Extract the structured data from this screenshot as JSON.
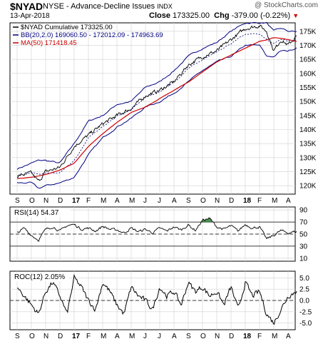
{
  "header": {
    "symbol": "$NYAD",
    "description": "NYSE - Advance-Decline Issues",
    "exchange": "INDX",
    "date": "13-Apr-2018",
    "close_label": "Close",
    "close_value": "173325.00",
    "chg_label": "Chg",
    "chg_value": "-379.00 (-0.22%)",
    "watermark": "@ StockCharts.com"
  },
  "colors": {
    "price": "#000000",
    "bb": "#000080",
    "ma": "#cc0000",
    "rsi_fill": "#2e7d32",
    "grid": "#d0d0d0"
  },
  "chart_data": [
    {
      "type": "line",
      "panel": "price",
      "legend": [
        {
          "name": "$NYAD Cumulative 173325.00",
          "color": "#000000"
        },
        {
          "name": "BB(20,2.0) 169060.50 - 172012.09 - 174963.69",
          "color": "#000080"
        },
        {
          "name": "MA(50) 171418.45",
          "color": "#cc0000"
        }
      ],
      "y_ticks": [
        "175K",
        "170K",
        "165K",
        "160K",
        "155K",
        "150K",
        "145K",
        "140K",
        "135K",
        "130K",
        "125K",
        "120K"
      ],
      "y_tick_values": [
        175,
        170,
        165,
        160,
        155,
        150,
        145,
        140,
        135,
        130,
        125,
        120
      ],
      "ylim": [
        117,
        178
      ],
      "y_unit": "K",
      "x_labels": [
        "S",
        "O",
        "N",
        "D",
        "17",
        "F",
        "M",
        "A",
        "M",
        "J",
        "J",
        "A",
        "S",
        "O",
        "N",
        "D",
        "18",
        "F",
        "M",
        "A"
      ],
      "x_bold": [
        "17",
        "18"
      ],
      "series_anchors": {
        "x": [
          0,
          1,
          1.5,
          2,
          3,
          4,
          5,
          6,
          7,
          8,
          9,
          10,
          11,
          12,
          13,
          14,
          15,
          16,
          17,
          17.5,
          18,
          18.5,
          19,
          19.6
        ],
        "cumulative": [
          123.5,
          124.5,
          121.5,
          125,
          126.5,
          134,
          138,
          142,
          145,
          147.5,
          152,
          154,
          157,
          163,
          166,
          168,
          172,
          176,
          177,
          175,
          168,
          172,
          170,
          173.3
        ],
        "ma50": [
          122.5,
          123,
          123.5,
          124,
          125.5,
          128,
          134,
          138.5,
          142.5,
          146,
          148,
          151,
          154,
          157,
          160.5,
          164,
          166.5,
          169,
          171.5,
          172,
          172.8,
          172.5,
          172,
          171.4
        ],
        "bb_upper": [
          126,
          128,
          129,
          129,
          128,
          135,
          143,
          145,
          149,
          150,
          155,
          157,
          161,
          166,
          169,
          171,
          175,
          178,
          178,
          178,
          175,
          176,
          175,
          174.9
        ],
        "bb_lower": [
          121,
          121,
          119,
          120,
          121,
          123,
          131,
          137,
          141,
          144,
          148,
          150,
          153,
          157,
          161,
          164,
          166,
          170,
          170,
          166,
          166,
          168,
          168,
          169.1
        ]
      }
    },
    {
      "type": "line",
      "panel": "rsi",
      "label": "RSI(14) 54.37",
      "y_ticks": [
        "90",
        "70",
        "50",
        "30",
        "10"
      ],
      "y_tick_values": [
        90,
        70,
        50,
        30,
        10
      ],
      "ylim": [
        5,
        95
      ],
      "reference_lines": [
        70,
        50,
        30
      ],
      "series_anchors": {
        "x": [
          0,
          0.5,
          1,
          1.5,
          2,
          2.5,
          3,
          3.5,
          4,
          4.5,
          5,
          5.5,
          6,
          6.5,
          7,
          7.5,
          8,
          8.5,
          9,
          9.5,
          10,
          10.5,
          11,
          11.5,
          12,
          12.5,
          13,
          13.5,
          14,
          14.5,
          15,
          15.5,
          16,
          16.5,
          17,
          17.5,
          18,
          18.5,
          19,
          19.6
        ],
        "values": [
          52,
          60,
          48,
          40,
          58,
          62,
          55,
          64,
          66,
          58,
          60,
          55,
          63,
          58,
          57,
          52,
          60,
          54,
          58,
          52,
          60,
          55,
          62,
          57,
          65,
          56,
          73,
          76,
          62,
          58,
          64,
          55,
          66,
          60,
          62,
          42,
          48,
          56,
          52,
          54.37
        ]
      }
    },
    {
      "type": "line",
      "panel": "roc",
      "label": "ROC(12) 2.05%",
      "y_ticks": [
        "5.0",
        "2.5",
        "0.0",
        "-2.5",
        "-5.0"
      ],
      "y_tick_values": [
        5,
        2.5,
        0,
        -2.5,
        -5
      ],
      "ylim": [
        -6.5,
        6.5
      ],
      "x_labels": [
        "S",
        "O",
        "N",
        "D",
        "17",
        "F",
        "M",
        "A",
        "M",
        "J",
        "J",
        "A",
        "S",
        "O",
        "N",
        "D",
        "18",
        "F",
        "M",
        "A"
      ],
      "series_anchors": {
        "x": [
          0,
          0.5,
          1,
          1.5,
          2,
          2.5,
          3,
          3.5,
          4,
          4.5,
          5,
          5.5,
          6,
          6.5,
          7,
          7.5,
          8,
          8.5,
          9,
          9.5,
          10,
          10.5,
          11,
          11.5,
          12,
          12.5,
          13,
          13.5,
          14,
          14.5,
          15,
          15.5,
          16,
          16.5,
          17,
          17.5,
          18,
          18.5,
          19,
          19.6
        ],
        "values": [
          3,
          1,
          -1,
          -3,
          2,
          4,
          1,
          -3,
          5,
          3,
          0,
          -2,
          4,
          2,
          -1,
          -3,
          3,
          1,
          0,
          -2,
          3,
          1,
          2,
          -1,
          4,
          2,
          3,
          1,
          2,
          -1,
          3,
          -2,
          4,
          1,
          2,
          -3,
          -5,
          -2,
          1,
          2.05
        ]
      }
    }
  ]
}
